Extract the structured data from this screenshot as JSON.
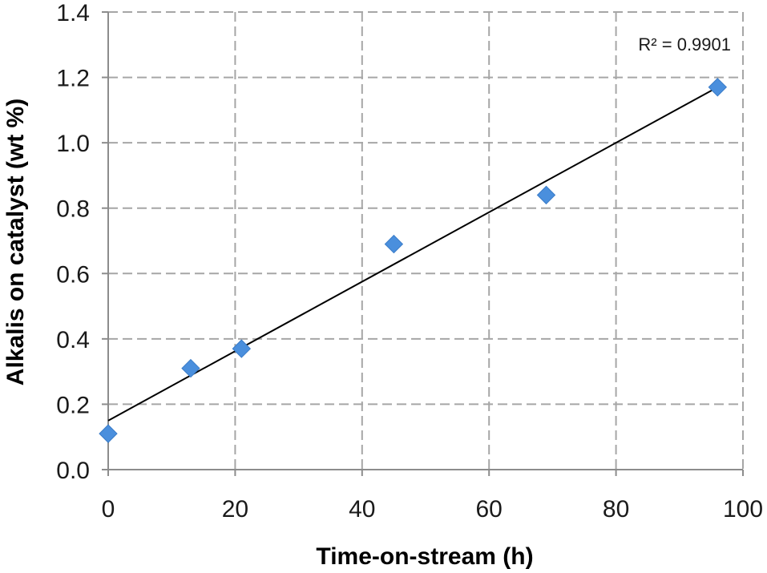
{
  "chart_data": {
    "type": "scatter",
    "xlabel": "Time-on-stream (h)",
    "ylabel": "Alkalis on catalyst (wt %)",
    "xlim": [
      0,
      100
    ],
    "ylim": [
      0,
      1.4
    ],
    "x_ticks": [
      "0",
      "20",
      "40",
      "60",
      "80",
      "100"
    ],
    "y_ticks": [
      "0.0",
      "0.2",
      "0.4",
      "0.6",
      "0.8",
      "1.0",
      "1.2",
      "1.4"
    ],
    "x_tick_values": [
      0,
      20,
      40,
      60,
      80,
      100
    ],
    "y_tick_values": [
      0,
      0.2,
      0.4,
      0.6,
      0.8,
      1.0,
      1.2,
      1.4
    ],
    "grid": true,
    "grid_style": "dashed",
    "series": [
      {
        "marker": "diamond",
        "color": "#4a8fdd",
        "points": [
          {
            "x": 0,
            "y": 0.11
          },
          {
            "x": 13,
            "y": 0.31
          },
          {
            "x": 21,
            "y": 0.37
          },
          {
            "x": 45,
            "y": 0.69
          },
          {
            "x": 69,
            "y": 0.84
          },
          {
            "x": 96,
            "y": 1.17
          }
        ]
      }
    ],
    "trendline": {
      "type": "linear",
      "color": "#000000",
      "x": [
        0,
        96
      ],
      "y": [
        0.15,
        1.17
      ]
    },
    "annotation": "R² = 0.9901"
  }
}
